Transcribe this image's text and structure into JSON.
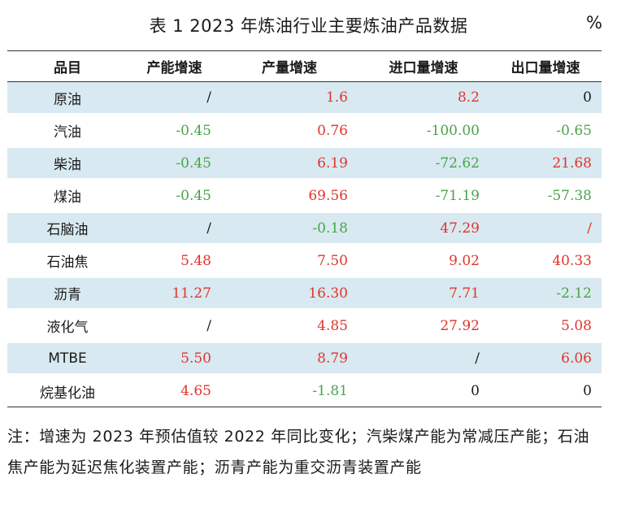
{
  "title": "表 1  2023 年炼油行业主要炼油产品数据",
  "unit": "%",
  "columns": [
    "品目",
    "产能增速",
    "产量增速",
    "进口量增速",
    "出口量增速"
  ],
  "rows": [
    {
      "name": "原油",
      "values": [
        "/",
        "1.6",
        "8.2",
        "0"
      ],
      "tones": [
        "neu",
        "pos",
        "pos",
        "neu"
      ]
    },
    {
      "name": "汽油",
      "values": [
        "-0.45",
        "0.76",
        "-100.00",
        "-0.65"
      ],
      "tones": [
        "neg",
        "pos",
        "neg",
        "neg"
      ]
    },
    {
      "name": "柴油",
      "values": [
        "-0.45",
        "6.19",
        "-72.62",
        "21.68"
      ],
      "tones": [
        "neg",
        "pos",
        "neg",
        "pos"
      ]
    },
    {
      "name": "煤油",
      "values": [
        "-0.45",
        "69.56",
        "-71.19",
        "-57.38"
      ],
      "tones": [
        "neg",
        "pos",
        "neg",
        "neg"
      ]
    },
    {
      "name": "石脑油",
      "values": [
        "/",
        "-0.18",
        "47.29",
        "/"
      ],
      "tones": [
        "neu",
        "neg",
        "pos",
        "pos"
      ]
    },
    {
      "name": "石油焦",
      "values": [
        "5.48",
        "7.50",
        "9.02",
        "40.33"
      ],
      "tones": [
        "pos",
        "pos",
        "pos",
        "pos"
      ]
    },
    {
      "name": "沥青",
      "values": [
        "11.27",
        "16.30",
        "7.71",
        "-2.12"
      ],
      "tones": [
        "pos",
        "pos",
        "pos",
        "neg"
      ]
    },
    {
      "name": "液化气",
      "values": [
        "/",
        "4.85",
        "27.92",
        "5.08"
      ],
      "tones": [
        "neu",
        "pos",
        "pos",
        "pos"
      ]
    },
    {
      "name": "MTBE",
      "values": [
        "5.50",
        "8.79",
        "/",
        "6.06"
      ],
      "tones": [
        "pos",
        "pos",
        "neu",
        "pos"
      ]
    },
    {
      "name": "烷基化油",
      "values": [
        "4.65",
        "-1.81",
        "0",
        "0"
      ],
      "tones": [
        "pos",
        "neg",
        "neu",
        "neu"
      ]
    }
  ],
  "note": "注：增速为 2023 年预估值较 2022 年同比变化；汽柴煤产能为常减压产能；石油焦产能为延迟焦化装置产能；沥青产能为重交沥青装置产能",
  "colors": {
    "positive": "#e0352b",
    "negative": "#4aa34a",
    "row_shade": "#d8e9f1"
  }
}
